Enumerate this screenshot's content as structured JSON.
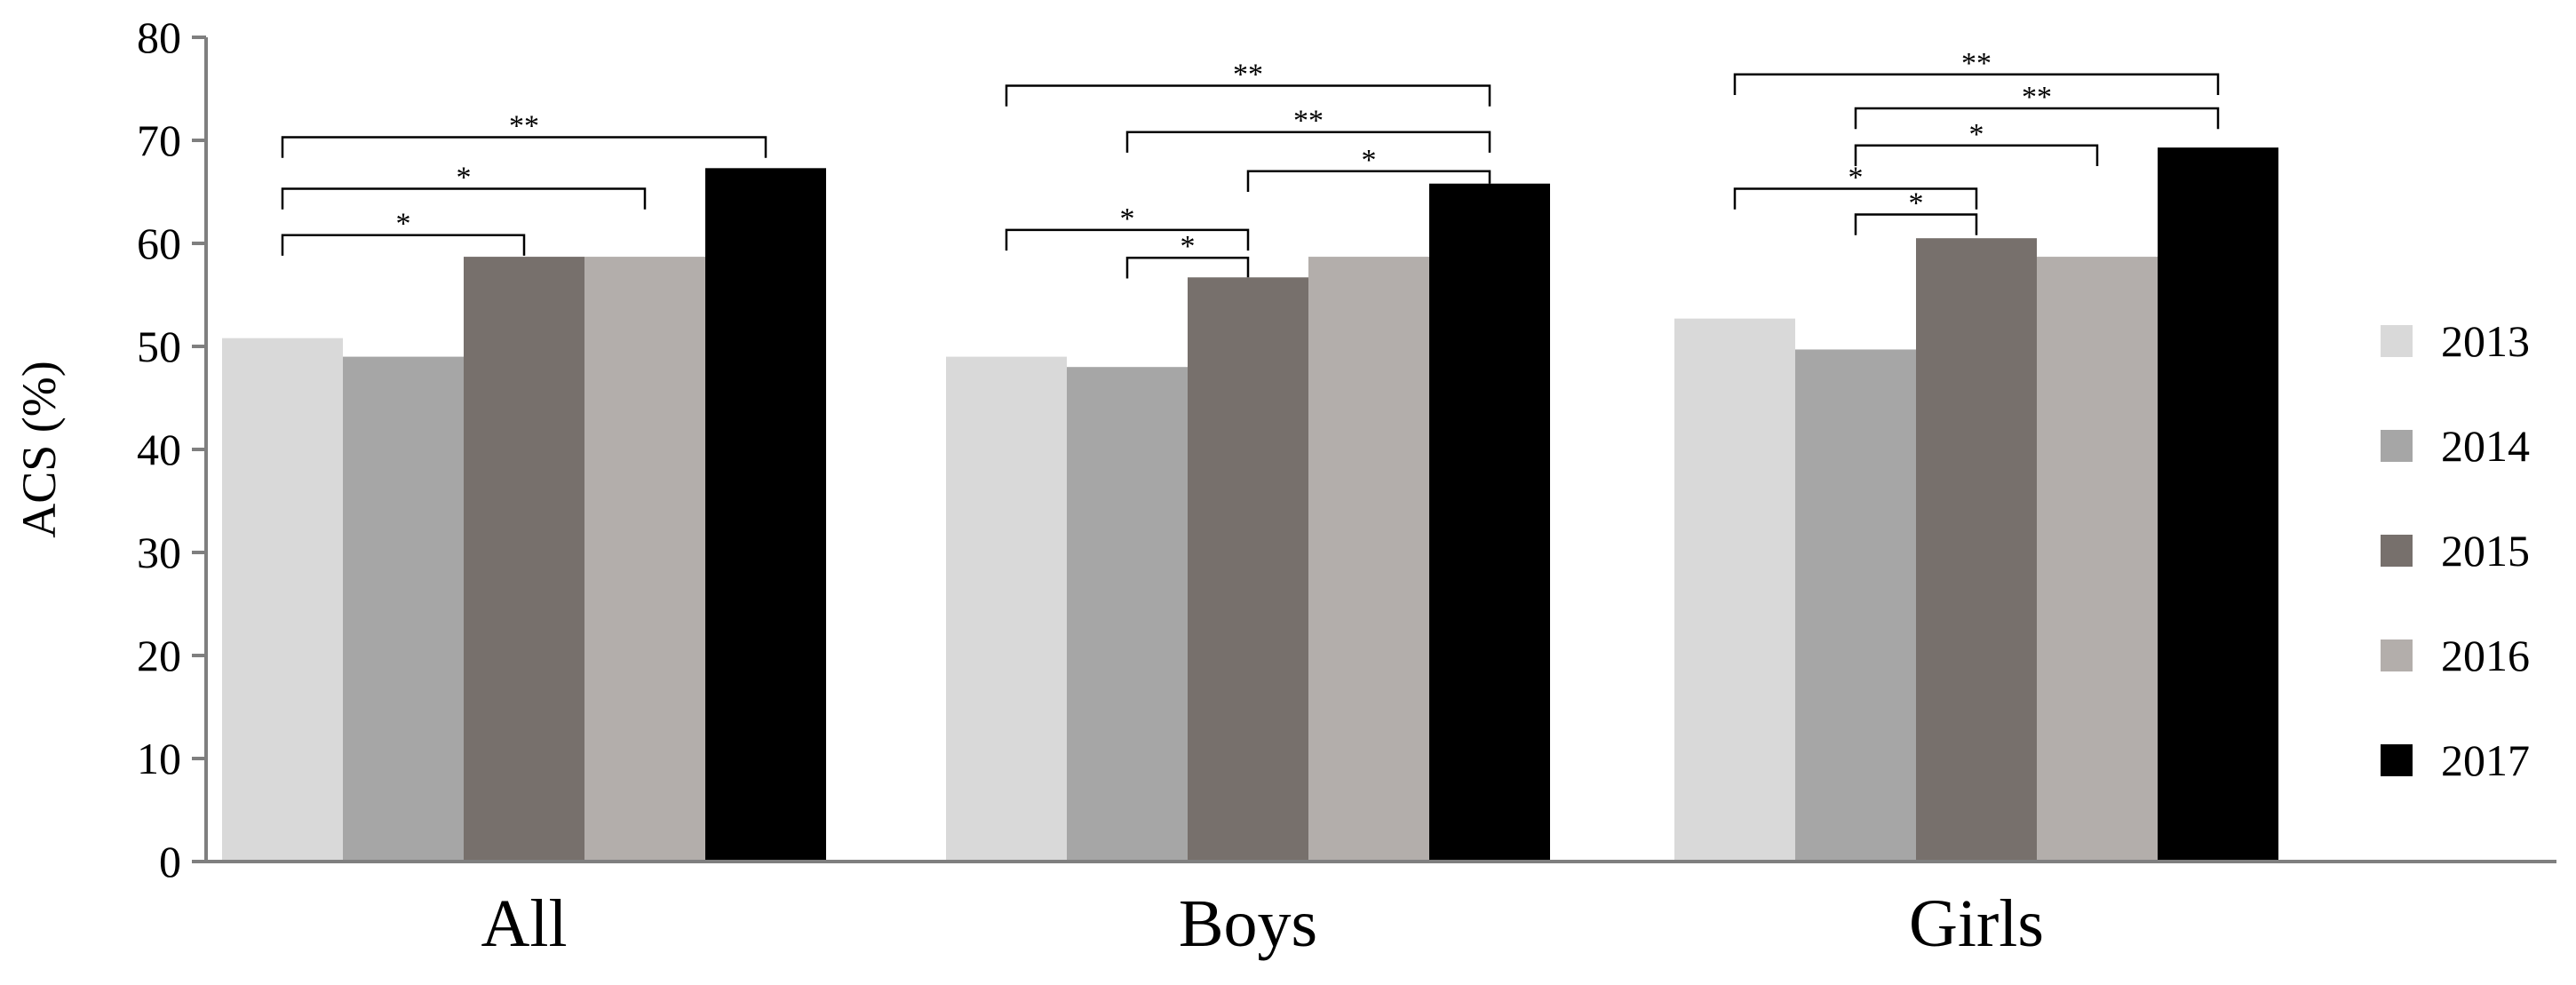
{
  "chart_data": {
    "type": "bar",
    "title": "",
    "xlabel": "",
    "ylabel": "ACS (%)",
    "ylim": [
      0,
      80
    ],
    "yticks": [
      0,
      10,
      20,
      30,
      40,
      50,
      60,
      70,
      80
    ],
    "grid": false,
    "legend_position": "right",
    "categories": [
      "All",
      "Boys",
      "Girls"
    ],
    "series": [
      {
        "name": "2013",
        "color": "#d9d9d9",
        "values": [
          50.8,
          49.0,
          52.7
        ]
      },
      {
        "name": "2014",
        "color": "#a6a6a6",
        "values": [
          49.0,
          48.0,
          49.7
        ]
      },
      {
        "name": "2015",
        "color": "#77706c",
        "values": [
          58.7,
          56.7,
          60.5
        ]
      },
      {
        "name": "2016",
        "color": "#b3aeab",
        "values": [
          58.7,
          58.7,
          58.7
        ]
      },
      {
        "name": "2017",
        "color": "#000000",
        "values": [
          67.3,
          65.8,
          69.3
        ]
      }
    ],
    "significance": [
      {
        "category": 0,
        "from": 0,
        "to": 4,
        "level": 70.3,
        "label": "**"
      },
      {
        "category": 0,
        "from": 0,
        "to": 3,
        "level": 65.3,
        "label": "*"
      },
      {
        "category": 0,
        "from": 0,
        "to": 2,
        "level": 60.8,
        "label": "*"
      },
      {
        "category": 1,
        "from": 0,
        "to": 4,
        "level": 75.3,
        "label": "**"
      },
      {
        "category": 1,
        "from": 1,
        "to": 4,
        "level": 70.8,
        "label": "**"
      },
      {
        "category": 1,
        "from": 2,
        "to": 4,
        "level": 67.0,
        "label": "*"
      },
      {
        "category": 1,
        "from": 0,
        "to": 2,
        "level": 61.3,
        "label": "*"
      },
      {
        "category": 1,
        "from": 1,
        "to": 2,
        "level": 58.6,
        "label": "*"
      },
      {
        "category": 2,
        "from": 0,
        "to": 4,
        "level": 76.4,
        "label": "**"
      },
      {
        "category": 2,
        "from": 1,
        "to": 4,
        "level": 73.1,
        "label": "**"
      },
      {
        "category": 2,
        "from": 1,
        "to": 3,
        "level": 69.5,
        "label": "*"
      },
      {
        "category": 2,
        "from": 0,
        "to": 2,
        "level": 65.3,
        "label": "*"
      },
      {
        "category": 2,
        "from": 1,
        "to": 2,
        "level": 62.8,
        "label": "*"
      }
    ]
  }
}
